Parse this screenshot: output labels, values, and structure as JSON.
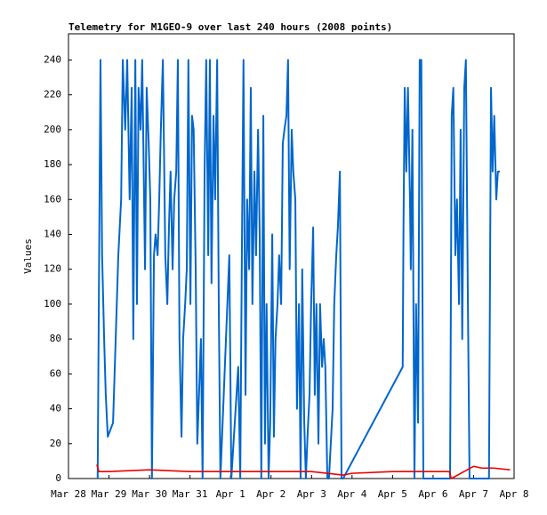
{
  "chart_data": {
    "type": "line",
    "title": "Telemetry for M1GEO-9 over last 240 hours (2008 points)",
    "y_label": "Values",
    "xlim": [
      0,
      11
    ],
    "xticks": [
      {
        "value": 0,
        "label": "Mar 28"
      },
      {
        "value": 1,
        "label": "Mar 29"
      },
      {
        "value": 2,
        "label": "Mar 30"
      },
      {
        "value": 3,
        "label": "Mar 31"
      },
      {
        "value": 4,
        "label": "Apr 1"
      },
      {
        "value": 5,
        "label": "Apr 2"
      },
      {
        "value": 6,
        "label": "Apr 3"
      },
      {
        "value": 7,
        "label": "Apr 4"
      },
      {
        "value": 8,
        "label": "Apr 5"
      },
      {
        "value": 9,
        "label": "Apr 6"
      },
      {
        "value": 10,
        "label": "Apr 7"
      },
      {
        "value": 11,
        "label": "Apr 8"
      }
    ],
    "ylim": [
      0,
      255
    ],
    "yticks": [
      0,
      20,
      40,
      60,
      80,
      100,
      120,
      140,
      160,
      180,
      200,
      220,
      240
    ],
    "grid": false,
    "series": [
      {
        "color": "#0066cc",
        "x": [
          0.72,
          0.79,
          0.83,
          0.88,
          0.92,
          0.97,
          1.1,
          1.23,
          1.3,
          1.34,
          1.4,
          1.45,
          1.51,
          1.56,
          1.6,
          1.65,
          1.69,
          1.73,
          1.78,
          1.82,
          1.89,
          1.93,
          1.98,
          2.02,
          2.06,
          2.11,
          2.15,
          2.2,
          2.24,
          2.28,
          2.33,
          2.39,
          2.44,
          2.48,
          2.52,
          2.57,
          2.61,
          2.66,
          2.7,
          2.74,
          2.79,
          2.83,
          2.88,
          2.92,
          2.96,
          3.01,
          3.05,
          3.09,
          3.14,
          3.18,
          3.27,
          3.31,
          3.36,
          3.4,
          3.45,
          3.49,
          3.53,
          3.58,
          3.62,
          3.67,
          3.71,
          3.75,
          3.97,
          4.02,
          4.19,
          4.24,
          4.28,
          4.32,
          4.37,
          4.41,
          4.46,
          4.5,
          4.54,
          4.59,
          4.63,
          4.68,
          4.72,
          4.76,
          4.81,
          4.85,
          4.89,
          4.94,
          4.98,
          5.03,
          5.07,
          5.11,
          5.16,
          5.2,
          5.25,
          5.29,
          5.33,
          5.38,
          5.42,
          5.46,
          5.51,
          5.55,
          5.6,
          5.64,
          5.69,
          5.73,
          5.77,
          5.82,
          5.86,
          5.9,
          5.95,
          5.99,
          6.04,
          6.08,
          6.12,
          6.17,
          6.21,
          6.26,
          6.3,
          6.34,
          6.39,
          6.43,
          6.52,
          6.56,
          6.61,
          6.65,
          6.7,
          6.74,
          6.78,
          8.25,
          8.27,
          8.3,
          8.34,
          8.38,
          8.43,
          8.45,
          8.49,
          8.54,
          8.58,
          8.63,
          8.67,
          8.71,
          8.76,
          9.42,
          9.46,
          9.5,
          9.55,
          9.59,
          9.64,
          9.68,
          9.72,
          9.77,
          9.81,
          9.86,
          9.9,
          9.94,
          10.38,
          10.43,
          10.47,
          10.51,
          10.56,
          10.6,
          10.65
        ],
        "values": [
          0,
          240,
          128,
          80,
          48,
          24,
          32,
          128,
          160,
          240,
          200,
          240,
          160,
          224,
          80,
          240,
          100,
          224,
          200,
          240,
          120,
          224,
          192,
          160,
          0,
          128,
          140,
          128,
          160,
          200,
          240,
          128,
          100,
          144,
          176,
          120,
          160,
          176,
          240,
          80,
          24,
          80,
          100,
          120,
          240,
          100,
          208,
          200,
          120,
          20,
          80,
          0,
          176,
          240,
          128,
          240,
          112,
          208,
          160,
          240,
          100,
          0,
          128,
          0,
          64,
          0,
          128,
          240,
          48,
          160,
          120,
          224,
          100,
          176,
          128,
          200,
          140,
          0,
          208,
          20,
          100,
          0,
          32,
          140,
          24,
          80,
          100,
          128,
          100,
          192,
          200,
          208,
          240,
          120,
          200,
          176,
          160,
          40,
          100,
          0,
          120,
          32,
          0,
          24,
          48,
          100,
          144,
          48,
          100,
          20,
          100,
          64,
          80,
          64,
          0,
          0,
          40,
          100,
          128,
          144,
          176,
          0,
          0,
          64,
          144,
          224,
          176,
          224,
          160,
          120,
          200,
          0,
          100,
          32,
          240,
          240,
          0,
          0,
          208,
          224,
          128,
          160,
          100,
          200,
          80,
          224,
          240,
          100,
          0,
          0,
          0,
          224,
          176,
          208,
          160,
          176,
          176
        ]
      },
      {
        "color": "#ee0000",
        "x": [
          0.7,
          0.75,
          1.0,
          2.0,
          3.0,
          4.0,
          5.0,
          6.0,
          6.78,
          7.0,
          8.0,
          9.0,
          9.4,
          9.45,
          10.0,
          10.2,
          10.5,
          10.9
        ],
        "values": [
          8,
          4,
          4,
          5,
          4,
          4,
          4,
          4,
          2,
          3,
          4,
          4,
          4,
          0,
          7,
          6,
          6,
          5
        ]
      }
    ]
  }
}
